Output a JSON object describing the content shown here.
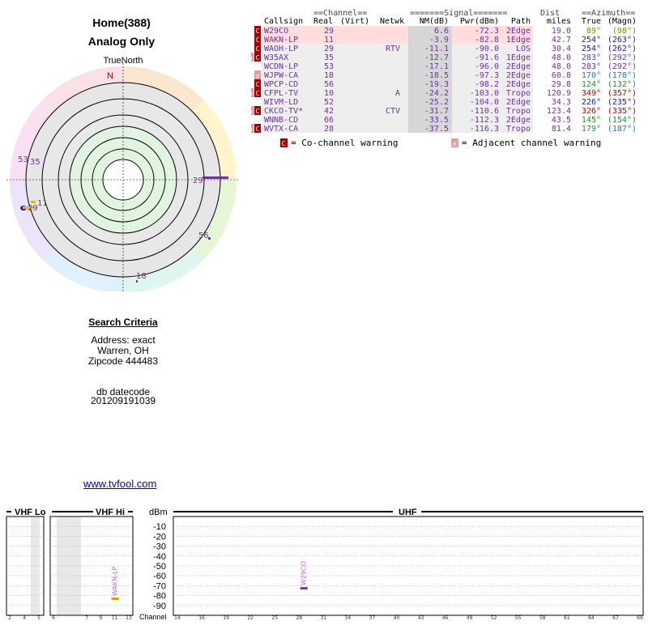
{
  "header": {
    "title": "Home(388)",
    "subtitle": "Analog Only"
  },
  "radar": {
    "north_label": "TrueNorth",
    "n_letter": "N",
    "markers": [
      {
        "label": "29",
        "az": 89,
        "color": "#7030a0",
        "len": 0.9
      },
      {
        "label": "53",
        "az": 283,
        "color": "#7030a0",
        "len": 0
      },
      {
        "label": "35",
        "az": 283,
        "color": "#7030a0",
        "len": 0
      },
      {
        "label": "11",
        "az": 254,
        "color": "#7030a0",
        "len": 0
      },
      {
        "label": "29",
        "az": 254,
        "color": "#7030a0",
        "len": 0
      },
      {
        "label": "56",
        "az": 124,
        "color": "#7030a0",
        "len": 0
      },
      {
        "label": "18",
        "az": 170,
        "color": "#7030a0",
        "len": 0
      }
    ]
  },
  "table": {
    "header_groups": {
      "channel": "Channel",
      "signal": "Signal",
      "dist": "Dist",
      "azimuth": "Azimuth"
    },
    "columns": [
      "Callsign",
      "Real",
      "(Virt)",
      "Netwk",
      "NM(dB)",
      "Pwr(dBm)",
      "Path",
      "miles",
      "True",
      "(Magn)"
    ],
    "rows": [
      {
        "warn": "C",
        "call": "W29CO",
        "real": "29",
        "virt": "",
        "net": "",
        "nm": "6.6",
        "pwr": "-72.3",
        "path": "2Edge",
        "dist": "19.0",
        "tru": "89°",
        "mag": "(98°)",
        "azc": "#9a8000",
        "bg": "#fdd"
      },
      {
        "warn": "C",
        "call": "WAKN-LP",
        "real": "11",
        "virt": "",
        "net": "",
        "nm": "-3.9",
        "pwr": "-82.8",
        "path": "1Edge",
        "dist": "42.7",
        "tru": "254°",
        "mag": "(263°)",
        "azc": "#1a1a9a",
        "bg": "#fdd"
      },
      {
        "warn": "C",
        "call": "WAOH-LP",
        "real": "29",
        "virt": "",
        "net": "RTV",
        "nm": "-11.1",
        "pwr": "-90.0",
        "path": "LOS",
        "dist": "30.4",
        "tru": "254°",
        "mag": "(262°)",
        "azc": "#1a1a9a",
        "bg": "#eee"
      },
      {
        "warn": "aC",
        "call": "W35AX",
        "real": "35",
        "virt": "",
        "net": "",
        "nm": "-12.7",
        "pwr": "-91.6",
        "path": "1Edge",
        "dist": "48.0",
        "tru": "283°",
        "mag": "(292°)",
        "azc": "#7030a0",
        "bg": "#eee"
      },
      {
        "warn": "",
        "call": "WCDN-LP",
        "real": "53",
        "virt": "",
        "net": "",
        "nm": "-17.1",
        "pwr": "-96.0",
        "path": "2Edge",
        "dist": "48.0",
        "tru": "283°",
        "mag": "(292°)",
        "azc": "#7030a0",
        "bg": "#eee"
      },
      {
        "warn": "a",
        "call": "WJPW-CA",
        "real": "18",
        "virt": "",
        "net": "",
        "nm": "-18.5",
        "pwr": "-97.3",
        "path": "2Edge",
        "dist": "60.8",
        "tru": "170°",
        "mag": "(178°)",
        "azc": "#0a8aaa",
        "bg": "#eee"
      },
      {
        "warn": "C",
        "call": "WPCP-CD",
        "real": "56",
        "virt": "",
        "net": "",
        "nm": "-19.3",
        "pwr": "-98.2",
        "path": "2Edge",
        "dist": "29.8",
        "tru": "124°",
        "mag": "(132°)",
        "azc": "#2a8a2a",
        "bg": "#eee"
      },
      {
        "warn": "aC",
        "call": "CFPL-TV",
        "real": "10",
        "virt": "",
        "net": "A",
        "nm": "-24.2",
        "pwr": "-103.0",
        "path": "Tropo",
        "dist": "120.9",
        "tru": "349°",
        "mag": "(357°)",
        "azc": "#c00000",
        "bg": "#eee"
      },
      {
        "warn": "",
        "call": "WIVM-LD",
        "real": "52",
        "virt": "",
        "net": "",
        "nm": "-25.2",
        "pwr": "-104.0",
        "path": "2Edge",
        "dist": "34.3",
        "tru": "226°",
        "mag": "(235°)",
        "azc": "#1a1a9a",
        "bg": "#eee"
      },
      {
        "warn": "aC",
        "call": "CKCO-TV*",
        "real": "42",
        "virt": "",
        "net": "CTV",
        "nm": "-31.7",
        "pwr": "-110.6",
        "path": "Tropo",
        "dist": "123.4",
        "tru": "326°",
        "mag": "(335°)",
        "azc": "#c00000",
        "bg": "#eee"
      },
      {
        "warn": "",
        "call": "WNNB-CD",
        "real": "66",
        "virt": "",
        "net": "",
        "nm": "-33.5",
        "pwr": "-112.3",
        "path": "2Edge",
        "dist": "43.5",
        "tru": "145°",
        "mag": "(154°)",
        "azc": "#2a8a2a",
        "bg": "#eee"
      },
      {
        "warn": "aC",
        "call": "WVTX-CA",
        "real": "28",
        "virt": "",
        "net": "",
        "nm": "-37.5",
        "pwr": "-116.3",
        "path": "Tropo",
        "dist": "81.4",
        "tru": "179°",
        "mag": "(187°)",
        "azc": "#0a8aaa",
        "bg": "#eee"
      }
    ],
    "legend": {
      "co": "= Co-channel warning",
      "adj": "= Adjacent channel warning",
      "co_icon": "C",
      "adj_icon": "a"
    }
  },
  "search": {
    "heading": "Search Criteria",
    "lines": [
      "Address: exact",
      "Warren, OH",
      "Zipcode 444483"
    ],
    "db_label": "db datecode",
    "db_value": "201209191039"
  },
  "link": {
    "text": "www.tvfool.com"
  },
  "spectrum": {
    "bands": {
      "vhf_lo": "VHF Lo",
      "vhf_hi": "VHF Hi",
      "uhf": "UHF"
    },
    "unit": "dBm",
    "y_ticks": [
      "-10",
      "-20",
      "-30",
      "-40",
      "-50",
      "-60",
      "-70",
      "-80",
      "-90"
    ],
    "channel_label": "Channel",
    "lo_channels": [
      "2",
      "4",
      "5",
      "6"
    ],
    "hi_channels": [
      "7",
      "9",
      "11",
      "13"
    ],
    "uhf_channels": [
      "14",
      "16",
      "19",
      "22",
      "25",
      "28",
      "31",
      "34",
      "37",
      "40",
      "43",
      "46",
      "49",
      "52",
      "55",
      "58",
      "61",
      "64",
      "67",
      "69"
    ],
    "markers": [
      {
        "call": "WAKN-LP",
        "channel": 11,
        "dbm": -82.8
      },
      {
        "call": "W29CO",
        "channel": 29,
        "dbm": -72.3
      }
    ]
  }
}
